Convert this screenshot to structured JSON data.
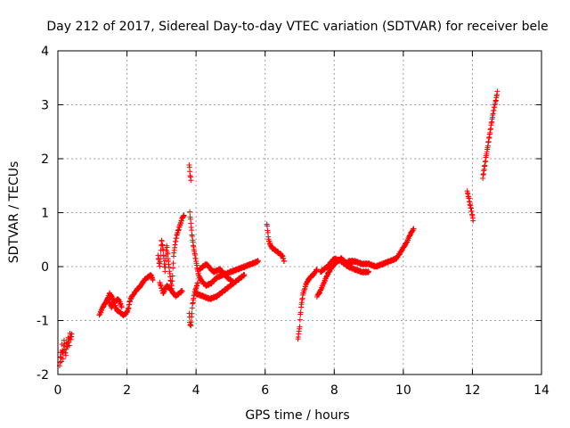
{
  "chart_data": {
    "type": "scatter",
    "title": "Day 212 of 2017, Sidereal Day-to-day VTEC variation (SDTVAR) for receiver bele",
    "xlabel": "GPS time / hours",
    "ylabel": "SDTVAR / TECUs",
    "xlim": [
      0,
      14
    ],
    "ylim": [
      -2,
      4
    ],
    "xticks": [
      0,
      2,
      4,
      6,
      8,
      10,
      12,
      14
    ],
    "yticks": [
      -2,
      -1,
      0,
      1,
      2,
      3,
      4
    ],
    "xtick_labels": [
      "0",
      "2",
      "4",
      "6",
      "8",
      "10",
      "12",
      "14"
    ],
    "ytick_labels": [
      "-2",
      "-1",
      "0",
      "1",
      "2",
      "3",
      "4"
    ],
    "grid": true,
    "marker": "+",
    "color": "#ff0000",
    "segments": [
      [
        [
          0.05,
          -1.85
        ],
        [
          0.08,
          -1.6
        ],
        [
          0.1,
          -1.75
        ],
        [
          0.12,
          -1.45
        ],
        [
          0.15,
          -1.7
        ],
        [
          0.18,
          -1.35
        ],
        [
          0.2,
          -1.55
        ],
        [
          0.23,
          -1.65
        ],
        [
          0.25,
          -1.4
        ],
        [
          0.28,
          -1.5
        ],
        [
          0.3,
          -1.3
        ],
        [
          0.33,
          -1.45
        ],
        [
          0.35,
          -1.25
        ],
        [
          0.38,
          -1.35
        ],
        [
          0.4,
          -1.25
        ]
      ],
      [
        [
          1.2,
          -0.9
        ],
        [
          1.3,
          -0.75
        ],
        [
          1.4,
          -0.65
        ],
        [
          1.5,
          -0.5
        ],
        [
          1.6,
          -0.6
        ],
        [
          1.7,
          -0.8
        ],
        [
          1.8,
          -0.85
        ],
        [
          1.9,
          -0.9
        ],
        [
          2.0,
          -0.85
        ],
        [
          2.05,
          -0.75
        ],
        [
          2.1,
          -0.6
        ],
        [
          2.2,
          -0.5
        ],
        [
          2.3,
          -0.42
        ],
        [
          2.4,
          -0.35
        ],
        [
          2.5,
          -0.25
        ],
        [
          2.6,
          -0.2
        ],
        [
          2.7,
          -0.15
        ],
        [
          2.75,
          -0.25
        ]
      ],
      [
        [
          1.35,
          -0.7
        ],
        [
          1.45,
          -0.6
        ],
        [
          1.55,
          -0.75
        ],
        [
          1.65,
          -0.65
        ],
        [
          1.75,
          -0.6
        ],
        [
          1.85,
          -0.75
        ]
      ],
      [
        [
          2.9,
          0.2
        ],
        [
          2.95,
          0.0
        ],
        [
          3.0,
          0.5
        ],
        [
          3.05,
          0.3
        ],
        [
          3.1,
          -0.1
        ],
        [
          3.15,
          0.4
        ],
        [
          3.2,
          0.1
        ],
        [
          3.25,
          -0.2
        ],
        [
          3.3,
          -0.4
        ],
        [
          3.35,
          0.2
        ],
        [
          3.4,
          0.45
        ],
        [
          3.45,
          0.6
        ],
        [
          3.5,
          0.7
        ],
        [
          3.55,
          0.8
        ],
        [
          3.6,
          0.9
        ],
        [
          3.65,
          0.95
        ]
      ],
      [
        [
          2.95,
          -0.3
        ],
        [
          3.05,
          -0.5
        ],
        [
          3.15,
          -0.35
        ],
        [
          3.3,
          -0.45
        ],
        [
          3.4,
          -0.55
        ],
        [
          3.5,
          -0.5
        ],
        [
          3.6,
          -0.45
        ]
      ],
      [
        [
          3.8,
          1.9
        ],
        [
          3.82,
          1.75
        ],
        [
          3.85,
          1.6
        ]
      ],
      [
        [
          3.8,
          -0.85
        ],
        [
          3.82,
          -1.05
        ],
        [
          3.85,
          -1.1
        ],
        [
          3.9,
          -0.7
        ],
        [
          3.95,
          -0.5
        ],
        [
          4.0,
          -0.4
        ],
        [
          4.05,
          -0.3
        ]
      ],
      [
        [
          3.82,
          1.0
        ],
        [
          3.85,
          0.8
        ],
        [
          3.88,
          0.6
        ],
        [
          3.92,
          0.4
        ],
        [
          3.97,
          0.2
        ],
        [
          4.0,
          0.1
        ],
        [
          4.05,
          -0.1
        ],
        [
          4.1,
          -0.2
        ],
        [
          4.2,
          -0.3
        ],
        [
          4.3,
          -0.35
        ],
        [
          4.45,
          -0.3
        ],
        [
          4.6,
          -0.2
        ],
        [
          4.8,
          -0.15
        ],
        [
          5.0,
          -0.1
        ],
        [
          5.2,
          -0.05
        ],
        [
          5.4,
          0.0
        ],
        [
          5.6,
          0.05
        ],
        [
          5.8,
          0.1
        ]
      ],
      [
        [
          4.0,
          -0.5
        ],
        [
          4.2,
          -0.55
        ],
        [
          4.4,
          -0.6
        ],
        [
          4.6,
          -0.55
        ],
        [
          4.8,
          -0.45
        ],
        [
          5.0,
          -0.35
        ],
        [
          5.2,
          -0.25
        ],
        [
          5.4,
          -0.15
        ]
      ],
      [
        [
          4.1,
          -0.05
        ],
        [
          4.3,
          0.05
        ],
        [
          4.5,
          -0.1
        ],
        [
          4.7,
          -0.05
        ],
        [
          4.9,
          -0.2
        ],
        [
          5.1,
          -0.3
        ]
      ],
      [
        [
          6.05,
          0.8
        ],
        [
          6.1,
          0.5
        ],
        [
          6.15,
          0.4
        ],
        [
          6.2,
          0.35
        ],
        [
          6.3,
          0.3
        ],
        [
          6.4,
          0.25
        ],
        [
          6.5,
          0.2
        ],
        [
          6.55,
          0.1
        ]
      ],
      [
        [
          6.95,
          -1.35
        ],
        [
          7.0,
          -1.1
        ],
        [
          7.02,
          -0.9
        ],
        [
          7.05,
          -0.7
        ],
        [
          7.1,
          -0.5
        ],
        [
          7.15,
          -0.4
        ],
        [
          7.2,
          -0.3
        ],
        [
          7.3,
          -0.2
        ],
        [
          7.4,
          -0.15
        ],
        [
          7.5,
          -0.05
        ]
      ],
      [
        [
          7.5,
          -0.55
        ],
        [
          7.6,
          -0.45
        ],
        [
          7.7,
          -0.3
        ],
        [
          7.8,
          -0.15
        ],
        [
          7.9,
          -0.05
        ],
        [
          8.0,
          0.05
        ],
        [
          8.1,
          0.1
        ],
        [
          8.2,
          0.15
        ],
        [
          8.3,
          0.1
        ],
        [
          8.4,
          0.05
        ],
        [
          8.5,
          0.05
        ]
      ],
      [
        [
          7.6,
          -0.1
        ],
        [
          7.8,
          0.0
        ],
        [
          8.0,
          0.15
        ],
        [
          8.2,
          0.1
        ],
        [
          8.4,
          0.0
        ],
        [
          8.6,
          -0.05
        ],
        [
          8.8,
          -0.1
        ],
        [
          9.0,
          -0.1
        ]
      ],
      [
        [
          8.4,
          0.1
        ],
        [
          8.6,
          0.1
        ],
        [
          8.8,
          0.05
        ],
        [
          9.0,
          0.05
        ],
        [
          9.2,
          0.0
        ],
        [
          9.4,
          0.05
        ],
        [
          9.6,
          0.1
        ],
        [
          9.8,
          0.15
        ],
        [
          9.9,
          0.25
        ],
        [
          10.0,
          0.35
        ],
        [
          10.1,
          0.45
        ],
        [
          10.2,
          0.6
        ],
        [
          10.3,
          0.7
        ]
      ],
      [
        [
          11.85,
          1.4
        ],
        [
          11.9,
          1.25
        ],
        [
          11.95,
          1.1
        ],
        [
          12.0,
          0.95
        ],
        [
          12.02,
          0.85
        ]
      ],
      [
        [
          12.3,
          1.65
        ],
        [
          12.35,
          1.85
        ],
        [
          12.4,
          2.05
        ],
        [
          12.45,
          2.25
        ],
        [
          12.5,
          2.45
        ],
        [
          12.55,
          2.65
        ],
        [
          12.6,
          2.85
        ],
        [
          12.65,
          3.0
        ],
        [
          12.7,
          3.15
        ],
        [
          12.72,
          3.25
        ]
      ]
    ]
  }
}
